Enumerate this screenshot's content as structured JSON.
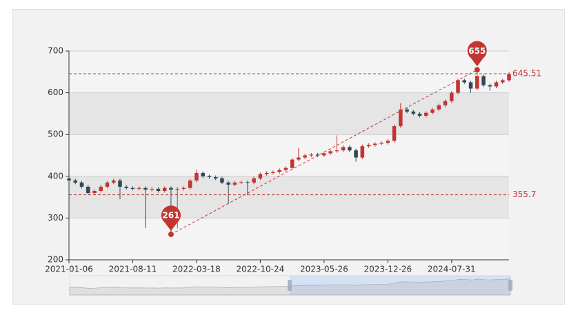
{
  "chart_data": {
    "type": "candlestick",
    "categories": [
      "2021-01-06",
      null,
      null,
      null,
      null,
      null,
      null,
      null,
      null,
      null,
      "2021-08-11",
      null,
      null,
      null,
      null,
      null,
      null,
      null,
      null,
      null,
      "2022-03-18",
      null,
      null,
      null,
      null,
      null,
      null,
      null,
      null,
      null,
      "2022-10-24",
      null,
      null,
      null,
      null,
      null,
      null,
      null,
      null,
      null,
      "2023-05-26",
      null,
      null,
      null,
      null,
      null,
      null,
      null,
      null,
      null,
      "2023-12-26",
      null,
      null,
      null,
      null,
      null,
      null,
      null,
      null,
      null,
      "2024-07-31",
      null,
      null,
      null,
      null,
      null,
      null,
      null,
      null,
      null
    ],
    "values": [
      [
        395,
        390,
        386,
        399
      ],
      [
        390,
        385,
        381,
        394
      ],
      [
        385,
        375,
        371,
        389
      ],
      [
        375,
        360,
        356,
        379
      ],
      [
        360,
        365,
        356,
        369
      ],
      [
        365,
        375,
        361,
        379
      ],
      [
        375,
        385,
        371,
        389
      ],
      [
        385,
        390,
        381,
        394
      ],
      [
        390,
        375,
        345,
        394
      ],
      [
        375,
        372,
        368,
        379
      ],
      [
        372,
        370,
        366,
        376
      ],
      [
        370,
        372,
        366,
        376
      ],
      [
        372,
        368,
        276,
        376
      ],
      [
        368,
        370,
        364,
        374
      ],
      [
        370,
        365,
        361,
        374
      ],
      [
        365,
        372,
        361,
        376
      ],
      [
        372,
        368,
        261,
        376
      ],
      [
        368,
        370,
        275,
        374
      ],
      [
        370,
        372,
        366,
        376
      ],
      [
        372,
        390,
        368,
        394
      ],
      [
        390,
        408,
        386,
        416
      ],
      [
        408,
        400,
        396,
        412
      ],
      [
        400,
        398,
        394,
        404
      ],
      [
        398,
        395,
        391,
        402
      ],
      [
        395,
        385,
        381,
        399
      ],
      [
        385,
        380,
        335,
        389
      ],
      [
        380,
        385,
        376,
        389
      ],
      [
        385,
        386,
        381,
        390
      ],
      [
        386,
        385,
        355,
        390
      ],
      [
        385,
        395,
        381,
        399
      ],
      [
        395,
        405,
        391,
        409
      ],
      [
        405,
        408,
        401,
        412
      ],
      [
        408,
        410,
        404,
        414
      ],
      [
        410,
        415,
        406,
        419
      ],
      [
        415,
        420,
        411,
        424
      ],
      [
        420,
        440,
        416,
        444
      ],
      [
        440,
        445,
        436,
        468
      ],
      [
        445,
        450,
        441,
        454
      ],
      [
        450,
        452,
        446,
        456
      ],
      [
        452,
        450,
        446,
        456
      ],
      [
        450,
        455,
        446,
        459
      ],
      [
        455,
        460,
        451,
        464
      ],
      [
        460,
        462,
        456,
        498
      ],
      [
        462,
        470,
        458,
        474
      ],
      [
        470,
        462,
        458,
        474
      ],
      [
        462,
        445,
        435,
        466
      ],
      [
        445,
        472,
        441,
        476
      ],
      [
        472,
        475,
        468,
        479
      ],
      [
        475,
        478,
        471,
        482
      ],
      [
        478,
        480,
        474,
        484
      ],
      [
        480,
        485,
        476,
        489
      ],
      [
        485,
        520,
        481,
        524
      ],
      [
        520,
        560,
        516,
        575
      ],
      [
        560,
        555,
        551,
        564
      ],
      [
        555,
        550,
        546,
        559
      ],
      [
        550,
        545,
        541,
        554
      ],
      [
        545,
        552,
        541,
        556
      ],
      [
        552,
        560,
        548,
        564
      ],
      [
        560,
        570,
        556,
        574
      ],
      [
        570,
        580,
        566,
        584
      ],
      [
        580,
        600,
        576,
        604
      ],
      [
        600,
        630,
        596,
        634
      ],
      [
        630,
        625,
        621,
        634
      ],
      [
        625,
        610,
        600,
        629
      ],
      [
        610,
        640,
        606,
        655
      ],
      [
        640,
        618,
        614,
        644
      ],
      [
        618,
        615,
        605,
        622
      ],
      [
        615,
        625,
        611,
        629
      ],
      [
        625,
        630,
        621,
        634
      ],
      [
        630,
        645,
        626,
        649
      ]
    ],
    "up_color": "#c23531",
    "down_color": "#314656",
    "mark_lines": [
      645.51,
      355.7
    ],
    "ylim": [
      200,
      700
    ],
    "yticks": [
      200,
      300,
      400,
      500,
      600,
      700
    ],
    "split_area": true
  }
}
